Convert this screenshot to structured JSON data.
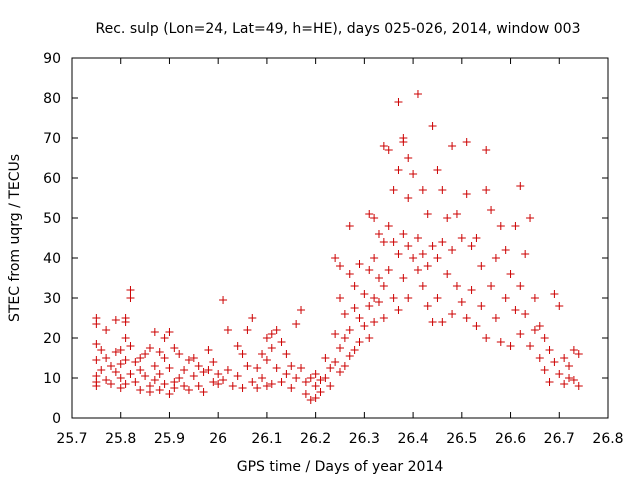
{
  "chart_data": {
    "type": "scatter",
    "title": "Rec. sulp (Lon=24, Lat=49, h=HE), days 025-026, 2014, window 003",
    "xlabel": "GPS time / Days of year 2014",
    "ylabel": "STEC from uqrg / TECUs",
    "xlim": [
      25.7,
      26.8
    ],
    "ylim": [
      0,
      90
    ],
    "xticks": [
      "25.7",
      "25.8",
      "25.9",
      "26",
      "26.1",
      "26.2",
      "26.3",
      "26.4",
      "26.5",
      "26.6",
      "26.7",
      "26.8"
    ],
    "yticks": [
      "0",
      "10",
      "20",
      "30",
      "40",
      "50",
      "60",
      "70",
      "80",
      "90"
    ],
    "grid": false,
    "legend": "none",
    "marker": "plus",
    "color": "#cc0000",
    "points": [
      [
        25.75,
        25.0
      ],
      [
        25.75,
        23.5
      ],
      [
        25.75,
        18.5
      ],
      [
        25.75,
        14.5
      ],
      [
        25.75,
        10.5
      ],
      [
        25.75,
        9.0
      ],
      [
        25.75,
        8.0
      ],
      [
        25.76,
        17.0
      ],
      [
        25.76,
        12.0
      ],
      [
        25.77,
        22.0
      ],
      [
        25.77,
        15.0
      ],
      [
        25.77,
        9.5
      ],
      [
        25.78,
        13.0
      ],
      [
        25.78,
        8.5
      ],
      [
        25.79,
        24.5
      ],
      [
        25.79,
        16.5
      ],
      [
        25.79,
        11.5
      ],
      [
        25.8,
        17.0
      ],
      [
        25.8,
        13.5
      ],
      [
        25.8,
        10.0
      ],
      [
        25.8,
        7.5
      ],
      [
        25.81,
        24.0
      ],
      [
        25.81,
        25.0
      ],
      [
        25.81,
        20.0
      ],
      [
        25.81,
        14.5
      ],
      [
        25.81,
        8.5
      ],
      [
        25.82,
        32.0
      ],
      [
        25.82,
        30.0
      ],
      [
        25.82,
        18.0
      ],
      [
        25.82,
        11.0
      ],
      [
        25.83,
        14.0
      ],
      [
        25.83,
        9.0
      ],
      [
        25.84,
        15.0
      ],
      [
        25.84,
        12.0
      ],
      [
        25.84,
        7.0
      ],
      [
        25.85,
        16.0
      ],
      [
        25.85,
        10.5
      ],
      [
        25.86,
        17.5
      ],
      [
        25.86,
        8.0
      ],
      [
        25.86,
        6.5
      ],
      [
        25.87,
        21.5
      ],
      [
        25.87,
        13.0
      ],
      [
        25.87,
        9.5
      ],
      [
        25.88,
        16.5
      ],
      [
        25.88,
        11.0
      ],
      [
        25.88,
        7.0
      ],
      [
        25.89,
        20.0
      ],
      [
        25.89,
        15.0
      ],
      [
        25.89,
        8.5
      ],
      [
        25.9,
        21.5
      ],
      [
        25.9,
        12.5
      ],
      [
        25.9,
        6.0
      ],
      [
        25.91,
        17.5
      ],
      [
        25.91,
        9.0
      ],
      [
        25.91,
        7.5
      ],
      [
        25.92,
        16.0
      ],
      [
        25.92,
        10.0
      ],
      [
        25.93,
        12.0
      ],
      [
        25.93,
        8.0
      ],
      [
        25.94,
        14.5
      ],
      [
        25.94,
        7.0
      ],
      [
        25.95,
        15.0
      ],
      [
        25.95,
        10.5
      ],
      [
        25.96,
        13.0
      ],
      [
        25.96,
        8.0
      ],
      [
        25.97,
        11.5
      ],
      [
        25.97,
        6.5
      ],
      [
        25.98,
        17.0
      ],
      [
        25.98,
        12.0
      ],
      [
        25.99,
        14.0
      ],
      [
        25.99,
        9.0
      ],
      [
        26.0,
        11.0
      ],
      [
        26.0,
        8.5
      ],
      [
        26.01,
        29.5
      ],
      [
        26.01,
        9.5
      ],
      [
        26.02,
        22.0
      ],
      [
        26.02,
        12.0
      ],
      [
        26.03,
        8.0
      ],
      [
        26.04,
        18.0
      ],
      [
        26.04,
        10.5
      ],
      [
        26.05,
        16.0
      ],
      [
        26.05,
        7.5
      ],
      [
        26.06,
        22.0
      ],
      [
        26.06,
        13.0
      ],
      [
        26.07,
        25.0
      ],
      [
        26.07,
        9.0
      ],
      [
        26.08,
        12.5
      ],
      [
        26.08,
        7.5
      ],
      [
        26.09,
        16.0
      ],
      [
        26.09,
        10.0
      ],
      [
        26.1,
        20.0
      ],
      [
        26.1,
        14.5
      ],
      [
        26.1,
        8.0
      ],
      [
        26.11,
        21.0
      ],
      [
        26.11,
        17.5
      ],
      [
        26.11,
        8.5
      ],
      [
        26.12,
        22.0
      ],
      [
        26.12,
        12.5
      ],
      [
        26.13,
        19.0
      ],
      [
        26.13,
        9.0
      ],
      [
        26.14,
        16.0
      ],
      [
        26.14,
        11.0
      ],
      [
        26.15,
        13.0
      ],
      [
        26.15,
        7.5
      ],
      [
        26.16,
        23.5
      ],
      [
        26.16,
        10.0
      ],
      [
        26.17,
        27.0
      ],
      [
        26.17,
        12.5
      ],
      [
        26.18,
        9.0
      ],
      [
        26.18,
        6.0
      ],
      [
        26.19,
        10.0
      ],
      [
        26.19,
        4.5
      ],
      [
        26.2,
        11.0
      ],
      [
        26.2,
        8.0
      ],
      [
        26.2,
        5.0
      ],
      [
        26.21,
        9.5
      ],
      [
        26.21,
        6.5
      ],
      [
        26.22,
        15.0
      ],
      [
        26.22,
        10.0
      ],
      [
        26.23,
        12.5
      ],
      [
        26.23,
        8.0
      ],
      [
        26.24,
        40.0
      ],
      [
        26.24,
        21.0
      ],
      [
        26.24,
        14.0
      ],
      [
        26.25,
        38.0
      ],
      [
        26.25,
        30.0
      ],
      [
        26.25,
        17.5
      ],
      [
        26.25,
        11.5
      ],
      [
        26.26,
        26.0
      ],
      [
        26.26,
        20.0
      ],
      [
        26.26,
        13.0
      ],
      [
        26.27,
        48.0
      ],
      [
        26.27,
        36.0
      ],
      [
        26.27,
        22.0
      ],
      [
        26.27,
        15.5
      ],
      [
        26.28,
        33.0
      ],
      [
        26.28,
        27.5
      ],
      [
        26.28,
        17.0
      ],
      [
        26.29,
        38.5
      ],
      [
        26.29,
        25.0
      ],
      [
        26.29,
        19.0
      ],
      [
        26.3,
        31.0
      ],
      [
        26.3,
        23.0
      ],
      [
        26.31,
        51.0
      ],
      [
        26.31,
        37.0
      ],
      [
        26.31,
        28.0
      ],
      [
        26.31,
        20.0
      ],
      [
        26.32,
        50.0
      ],
      [
        26.32,
        40.0
      ],
      [
        26.32,
        30.0
      ],
      [
        26.32,
        24.0
      ],
      [
        26.33,
        46.0
      ],
      [
        26.33,
        35.0
      ],
      [
        26.33,
        29.0
      ],
      [
        26.34,
        68.0
      ],
      [
        26.34,
        44.0
      ],
      [
        26.34,
        33.0
      ],
      [
        26.34,
        25.0
      ],
      [
        26.35,
        67.0
      ],
      [
        26.35,
        48.0
      ],
      [
        26.35,
        37.0
      ],
      [
        26.36,
        57.0
      ],
      [
        26.36,
        44.0
      ],
      [
        26.36,
        30.0
      ],
      [
        26.37,
        79.0
      ],
      [
        26.37,
        62.0
      ],
      [
        26.37,
        41.0
      ],
      [
        26.37,
        27.0
      ],
      [
        26.38,
        70.0
      ],
      [
        26.38,
        69.0
      ],
      [
        26.38,
        46.0
      ],
      [
        26.38,
        35.0
      ],
      [
        26.39,
        65.0
      ],
      [
        26.39,
        55.0
      ],
      [
        26.39,
        43.0
      ],
      [
        26.39,
        30.0
      ],
      [
        26.4,
        61.0
      ],
      [
        26.4,
        40.0
      ],
      [
        26.41,
        81.0
      ],
      [
        26.41,
        45.0
      ],
      [
        26.41,
        37.0
      ],
      [
        26.42,
        57.0
      ],
      [
        26.42,
        41.0
      ],
      [
        26.42,
        33.0
      ],
      [
        26.43,
        51.0
      ],
      [
        26.43,
        38.0
      ],
      [
        26.43,
        28.0
      ],
      [
        26.44,
        73.0
      ],
      [
        26.44,
        43.0
      ],
      [
        26.44,
        24.0
      ],
      [
        26.45,
        62.0
      ],
      [
        26.45,
        40.0
      ],
      [
        26.45,
        30.0
      ],
      [
        26.46,
        57.0
      ],
      [
        26.46,
        44.0
      ],
      [
        26.46,
        24.0
      ],
      [
        26.47,
        50.0
      ],
      [
        26.47,
        36.0
      ],
      [
        26.48,
        68.0
      ],
      [
        26.48,
        42.0
      ],
      [
        26.48,
        26.0
      ],
      [
        26.49,
        51.0
      ],
      [
        26.49,
        33.0
      ],
      [
        26.5,
        45.0
      ],
      [
        26.5,
        29.0
      ],
      [
        26.51,
        69.0
      ],
      [
        26.51,
        56.0
      ],
      [
        26.51,
        25.0
      ],
      [
        26.52,
        43.0
      ],
      [
        26.52,
        32.0
      ],
      [
        26.53,
        45.0
      ],
      [
        26.53,
        23.0
      ],
      [
        26.54,
        38.0
      ],
      [
        26.54,
        28.0
      ],
      [
        26.55,
        67.0
      ],
      [
        26.55,
        57.0
      ],
      [
        26.55,
        20.0
      ],
      [
        26.56,
        52.0
      ],
      [
        26.56,
        33.0
      ],
      [
        26.57,
        40.0
      ],
      [
        26.57,
        25.0
      ],
      [
        26.58,
        48.0
      ],
      [
        26.58,
        19.0
      ],
      [
        26.59,
        42.0
      ],
      [
        26.59,
        30.0
      ],
      [
        26.6,
        36.0
      ],
      [
        26.6,
        18.0
      ],
      [
        26.61,
        48.0
      ],
      [
        26.61,
        27.0
      ],
      [
        26.62,
        58.0
      ],
      [
        26.62,
        33.0
      ],
      [
        26.62,
        21.0
      ],
      [
        26.63,
        41.0
      ],
      [
        26.63,
        26.0
      ],
      [
        26.64,
        50.0
      ],
      [
        26.64,
        18.0
      ],
      [
        26.65,
        30.0
      ],
      [
        26.65,
        22.0
      ],
      [
        26.66,
        23.0
      ],
      [
        26.66,
        15.0
      ],
      [
        26.67,
        20.0
      ],
      [
        26.67,
        12.0
      ],
      [
        26.68,
        17.0
      ],
      [
        26.68,
        9.0
      ],
      [
        26.69,
        31.0
      ],
      [
        26.69,
        14.0
      ],
      [
        26.7,
        28.0
      ],
      [
        26.7,
        11.0
      ],
      [
        26.71,
        15.0
      ],
      [
        26.71,
        8.5
      ],
      [
        26.72,
        13.0
      ],
      [
        26.72,
        10.0
      ],
      [
        26.73,
        17.0
      ],
      [
        26.73,
        9.5
      ],
      [
        26.74,
        16.0
      ],
      [
        26.74,
        8.0
      ]
    ]
  }
}
